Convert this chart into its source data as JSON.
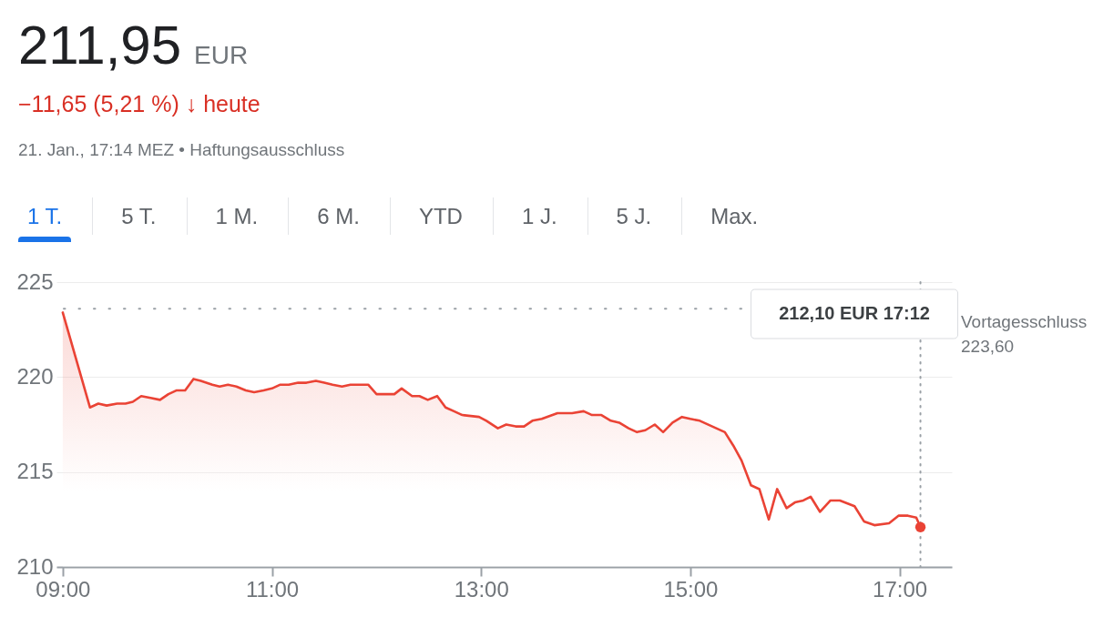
{
  "chart_data": {
    "type": "area",
    "title": "211,95 EUR",
    "subtitle": "−11,65 (5,21 %) ↓ heute",
    "annotations": [
      "21. Jan., 17:14 MEZ • Haftungsausschluss",
      "1 T.",
      "5 T.",
      "1 M.",
      "6 M.",
      "YTD",
      "1 J.",
      "5 J.",
      "Max.",
      "212,10 EUR 17:12"
    ],
    "x": [
      9.0,
      9.26,
      9.34,
      9.42,
      9.52,
      9.6,
      9.67,
      9.75,
      9.84,
      9.93,
      10.01,
      10.09,
      10.17,
      10.25,
      10.32,
      10.43,
      10.5,
      10.58,
      10.66,
      10.75,
      10.83,
      10.92,
      11.0,
      11.08,
      11.16,
      11.25,
      11.33,
      11.42,
      11.5,
      11.58,
      11.67,
      11.75,
      11.92,
      12.0,
      12.17,
      12.24,
      12.34,
      12.41,
      12.49,
      12.58,
      12.66,
      12.74,
      12.82,
      12.98,
      13.05,
      13.16,
      13.24,
      13.33,
      13.41,
      13.49,
      13.58,
      13.73,
      13.87,
      13.98,
      14.06,
      14.15,
      14.24,
      14.32,
      14.41,
      14.49,
      14.57,
      14.66,
      14.74,
      14.83,
      14.92,
      15.0,
      15.09,
      15.21,
      15.33,
      15.41,
      15.49,
      15.58,
      15.66,
      15.75,
      15.83,
      15.92,
      16.0,
      16.08,
      16.15,
      16.24,
      16.34,
      16.43,
      16.57,
      16.66,
      16.76,
      16.9,
      16.99,
      17.08,
      17.16,
      17.2
    ],
    "series": [
      {
        "color": "#ea4335",
        "values": [
          223.4,
          218.4,
          218.6,
          218.5,
          218.6,
          218.6,
          218.7,
          219.0,
          218.9,
          218.8,
          219.1,
          219.3,
          219.3,
          219.9,
          219.8,
          219.6,
          219.5,
          219.6,
          219.5,
          219.3,
          219.2,
          219.3,
          219.4,
          219.6,
          219.6,
          219.7,
          219.7,
          219.8,
          219.7,
          219.6,
          219.5,
          219.6,
          219.6,
          219.1,
          219.1,
          219.4,
          219.0,
          219.0,
          218.8,
          219.0,
          218.4,
          218.2,
          218.0,
          217.9,
          217.7,
          217.3,
          217.5,
          217.4,
          217.4,
          217.7,
          217.8,
          218.1,
          218.1,
          218.2,
          218.0,
          218.0,
          217.7,
          217.6,
          217.3,
          217.1,
          217.2,
          217.5,
          217.1,
          217.6,
          217.9,
          217.8,
          217.7,
          217.4,
          217.1,
          216.4,
          215.6,
          214.3,
          214.1,
          212.5,
          214.1,
          213.1,
          213.4,
          213.5,
          213.7,
          212.9,
          213.5,
          213.5,
          213.2,
          212.4,
          212.2,
          212.3,
          212.7,
          212.7,
          212.6,
          212.1
        ]
      },
      {
        "type": "scatter",
        "color": "#ea4335",
        "x": [
          17.2
        ],
        "values": [
          212.1
        ]
      }
    ],
    "xlim": [
      8.94,
      17.5
    ],
    "xticks": [
      {
        "value": 9,
        "label": "09:00"
      },
      {
        "value": 11,
        "label": "11:00"
      },
      {
        "value": 13,
        "label": "13:00"
      },
      {
        "value": 15,
        "label": "15:00"
      },
      {
        "value": 17,
        "label": "17:00"
      }
    ],
    "ylim": [
      210,
      225
    ],
    "yticks": [
      210,
      215,
      220,
      225
    ],
    "grid": "y",
    "ref_lines": [
      {
        "axis": "y",
        "value": 223.6,
        "label": "Vortagesschluss 223,60",
        "color": "#9aa0a6",
        "line_style": "dotted"
      },
      {
        "axis": "x",
        "value": 17.2,
        "color": "#9aa0a6",
        "line_style": "dotted"
      }
    ]
  }
}
